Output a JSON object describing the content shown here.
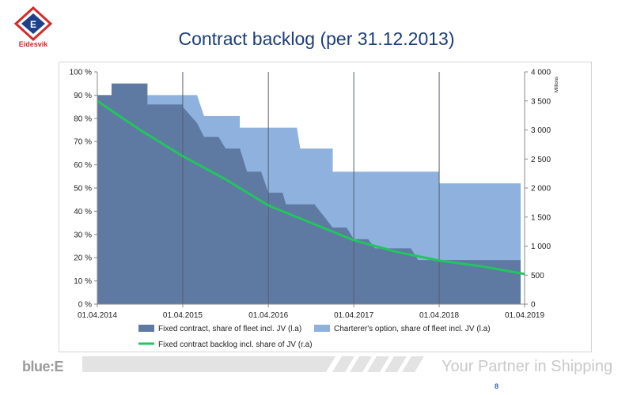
{
  "logo": {
    "text": "Eidesvik",
    "letter": "E"
  },
  "slide": {
    "title": "Contract backlog (per 31.12.2013)",
    "page": "8"
  },
  "footer": {
    "brand": "blue:E",
    "tagline": "Your Partner in Shipping"
  },
  "colors": {
    "fixed": "#5f7aa2",
    "option": "#8eb1de",
    "line": "#22c55e",
    "title": "#1b3d78",
    "logo_red": "#d62828",
    "logo_blue": "#1e3f8a"
  },
  "chart_data": {
    "type": "area",
    "x_range": [
      "2014-04-01",
      "2019-04-01"
    ],
    "x_ticks": [
      "01.04.2014",
      "01.04.2015",
      "01.04.2016",
      "01.04.2017",
      "01.04.2018",
      "01.04.2019"
    ],
    "y_left": {
      "range": [
        0,
        100
      ],
      "ticks": [
        "0 %",
        "10 %",
        "20 %",
        "30 %",
        "40 %",
        "50 %",
        "60 %",
        "70 %",
        "80 %",
        "90 %",
        "100 %"
      ]
    },
    "y_right": {
      "range": [
        0,
        4000
      ],
      "unit_label": "Millions",
      "ticks": [
        "0",
        "500",
        "1 000",
        "1 500",
        "2 000",
        "2 500",
        "3 000",
        "3 500",
        "4 000"
      ]
    },
    "grid": "vertical",
    "legend_position": "bottom",
    "series": [
      {
        "name": "Fixed contract, share of fleet incl. JV (l.a)",
        "kind": "area",
        "axis": "left",
        "points": [
          [
            "2014-04-01",
            90
          ],
          [
            "2014-06-01",
            90
          ],
          [
            "2014-06-01",
            95
          ],
          [
            "2014-11-01",
            95
          ],
          [
            "2014-11-01",
            86
          ],
          [
            "2015-04-01",
            86
          ],
          [
            "2015-04-01",
            85
          ],
          [
            "2015-06-01",
            78
          ],
          [
            "2015-07-01",
            72
          ],
          [
            "2015-09-01",
            72
          ],
          [
            "2015-10-01",
            67
          ],
          [
            "2015-12-01",
            67
          ],
          [
            "2016-01-01",
            57
          ],
          [
            "2016-03-01",
            57
          ],
          [
            "2016-04-01",
            48
          ],
          [
            "2016-06-01",
            48
          ],
          [
            "2016-06-15",
            43
          ],
          [
            "2016-10-15",
            43
          ],
          [
            "2017-01-01",
            33
          ],
          [
            "2017-03-01",
            33
          ],
          [
            "2017-04-01",
            28
          ],
          [
            "2017-06-01",
            28
          ],
          [
            "2017-07-01",
            24
          ],
          [
            "2017-12-01",
            24
          ],
          [
            "2018-01-01",
            19
          ],
          [
            "2019-03-15",
            19
          ]
        ]
      },
      {
        "name": "Charterer's option, share of fleet incl. JV (l.a)",
        "kind": "area",
        "axis": "left",
        "points": [
          [
            "2014-04-01",
            90
          ],
          [
            "2014-06-01",
            90
          ],
          [
            "2014-06-01",
            95
          ],
          [
            "2014-11-01",
            95
          ],
          [
            "2014-11-01",
            90
          ],
          [
            "2015-06-01",
            90
          ],
          [
            "2015-07-01",
            81
          ],
          [
            "2015-12-01",
            81
          ],
          [
            "2015-12-01",
            76
          ],
          [
            "2016-08-01",
            76
          ],
          [
            "2016-08-15",
            67
          ],
          [
            "2017-01-01",
            67
          ],
          [
            "2017-01-01",
            57
          ],
          [
            "2018-04-01",
            57
          ],
          [
            "2018-04-01",
            52
          ],
          [
            "2019-03-15",
            52
          ]
        ]
      },
      {
        "name": "Fixed contract backlog incl. share of JV (r.a)",
        "kind": "line",
        "axis": "right",
        "points": [
          [
            "2014-04-01",
            3500
          ],
          [
            "2014-10-01",
            3000
          ],
          [
            "2015-04-01",
            2550
          ],
          [
            "2015-10-01",
            2150
          ],
          [
            "2016-04-01",
            1700
          ],
          [
            "2016-10-01",
            1400
          ],
          [
            "2017-04-01",
            1100
          ],
          [
            "2017-10-01",
            900
          ],
          [
            "2018-04-01",
            750
          ],
          [
            "2018-10-01",
            650
          ],
          [
            "2019-04-01",
            520
          ]
        ]
      }
    ]
  }
}
